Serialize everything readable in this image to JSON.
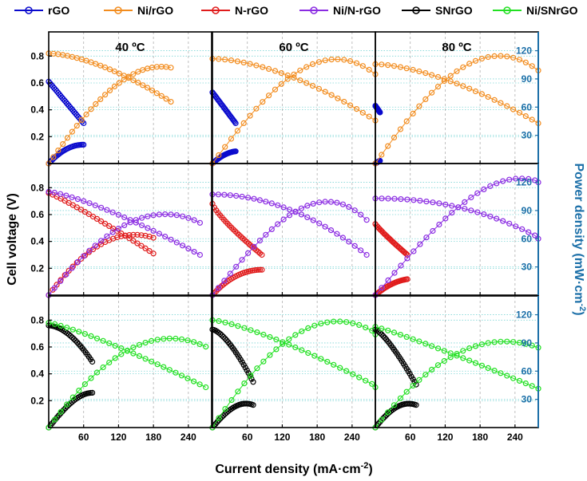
{
  "legend": {
    "entries": [
      {
        "label": "rGO",
        "color": "#0a0acd"
      },
      {
        "label": "Ni/rGO",
        "color": "#f28c1e"
      },
      {
        "label": "N-rGO",
        "color": "#e01b1b"
      },
      {
        "label": "Ni/N-rGO",
        "color": "#8a2be2"
      },
      {
        "label": "SNrGO",
        "color": "#000000"
      },
      {
        "label": "Ni/SNrGO",
        "color": "#22e022"
      }
    ]
  },
  "axes": {
    "xlabel": "Current density (mA·cm",
    "xlabel_sup": "-2",
    "xlabel_end": ")",
    "ylabel": "Cell voltage (V)",
    "y2label": "Power density (mW·cm",
    "y2label_sup": "-2",
    "y2label_end": ")",
    "xticks": [
      "60",
      "120",
      "180",
      "240"
    ],
    "yticks": [
      "0.2",
      "0.4",
      "0.6",
      "0.8"
    ],
    "y2ticks": [
      "30",
      "60",
      "90",
      "120"
    ],
    "xlim": [
      0,
      280
    ],
    "ylim": [
      0,
      0.98
    ],
    "y2lim": [
      0,
      140
    ]
  },
  "temperatures": [
    "40 ºC",
    "60 ºC",
    "80 ºC"
  ],
  "colors": {
    "rGO": "#0a0acd",
    "NirGO": "#f28c1e",
    "NrGO": "#e01b1b",
    "NiNrGO": "#8a2be2",
    "SNrGO": "#000000",
    "NiSNrGO": "#22e022",
    "right_axis": "#1b6fa8",
    "hgrid": "#7fd6d6",
    "vgrid": "#b0b0b0"
  },
  "chart_data": {
    "type": "line",
    "note_rows": "row 0: rGO & Ni/rGO; row 1: N-rGO & Ni/N-rGO; row 2: SNrGO & Ni/SNrGO; columns: 40, 60, 80 ºC",
    "panels": [
      {
        "row": 0,
        "col": 0,
        "series": [
          {
            "name": "rGO",
            "kind": "voltage",
            "x_max": 60,
            "v0": 0.61,
            "v_end": 0.3,
            "shape": 1.0
          },
          {
            "name": "rGO",
            "kind": "power",
            "x_max": 60,
            "p_end": 20
          },
          {
            "name": "Ni/rGO",
            "kind": "voltage",
            "x_max": 210,
            "v0": 0.82,
            "v_end": 0.46,
            "shape": 1.6
          },
          {
            "name": "Ni/rGO",
            "kind": "power",
            "x_max": 210,
            "p_end": 102
          }
        ]
      },
      {
        "row": 0,
        "col": 1,
        "series": [
          {
            "name": "rGO",
            "kind": "voltage",
            "x_max": 40,
            "v0": 0.53,
            "v_end": 0.3,
            "shape": 1.0
          },
          {
            "name": "rGO",
            "kind": "power",
            "x_max": 40,
            "p_end": 13
          },
          {
            "name": "Ni/rGO",
            "kind": "voltage",
            "x_max": 280,
            "v0": 0.78,
            "v_end": 0.32,
            "shape": 1.7
          },
          {
            "name": "Ni/rGO",
            "kind": "power",
            "x_max": 280,
            "p_end": 95
          }
        ]
      },
      {
        "row": 0,
        "col": 2,
        "series": [
          {
            "name": "rGO",
            "kind": "voltage",
            "x_max": 8,
            "v0": 0.43,
            "v_end": 0.38,
            "shape": 1.0
          },
          {
            "name": "rGO",
            "kind": "power",
            "x_max": 8,
            "p_end": 3
          },
          {
            "name": "Ni/rGO",
            "kind": "voltage",
            "x_max": 280,
            "v0": 0.74,
            "v_end": 0.3,
            "shape": 1.6
          },
          {
            "name": "Ni/rGO",
            "kind": "power",
            "x_max": 280,
            "p_end": 99
          }
        ]
      },
      {
        "row": 1,
        "col": 0,
        "series": [
          {
            "name": "N-rGO",
            "kind": "voltage",
            "x_max": 180,
            "v0": 0.76,
            "v_end": 0.31,
            "shape": 1.1
          },
          {
            "name": "N-rGO",
            "kind": "power",
            "x_max": 180,
            "p_end": 61
          },
          {
            "name": "Ni/N-rGO",
            "kind": "voltage",
            "x_max": 260,
            "v0": 0.77,
            "v_end": 0.3,
            "shape": 1.3
          },
          {
            "name": "Ni/N-rGO",
            "kind": "power",
            "x_max": 260,
            "p_end": 77
          }
        ]
      },
      {
        "row": 1,
        "col": 1,
        "series": [
          {
            "name": "N-rGO",
            "kind": "voltage",
            "x_max": 85,
            "v0": 0.68,
            "v_end": 0.3,
            "shape": 0.8
          },
          {
            "name": "N-rGO",
            "kind": "power",
            "x_max": 85,
            "p_end": 27
          },
          {
            "name": "Ni/N-rGO",
            "kind": "voltage",
            "x_max": 265,
            "v0": 0.75,
            "v_end": 0.3,
            "shape": 2.0
          },
          {
            "name": "Ni/N-rGO",
            "kind": "power",
            "x_max": 265,
            "p_end": 80
          }
        ]
      },
      {
        "row": 1,
        "col": 2,
        "series": [
          {
            "name": "N-rGO",
            "kind": "voltage",
            "x_max": 55,
            "v0": 0.53,
            "v_end": 0.3,
            "shape": 0.9
          },
          {
            "name": "N-rGO",
            "kind": "power",
            "x_max": 55,
            "p_end": 17
          },
          {
            "name": "Ni/N-rGO",
            "kind": "voltage",
            "x_max": 285,
            "v0": 0.72,
            "v_end": 0.42,
            "shape": 2.2
          },
          {
            "name": "Ni/N-rGO",
            "kind": "power",
            "x_max": 285,
            "p_end": 120
          }
        ]
      },
      {
        "row": 2,
        "col": 0,
        "series": [
          {
            "name": "SNrGO",
            "kind": "voltage",
            "x_max": 75,
            "v0": 0.76,
            "v_end": 0.49,
            "shape": 1.8
          },
          {
            "name": "SNrGO",
            "kind": "power",
            "x_max": 75,
            "p_end": 37
          },
          {
            "name": "Ni/SNrGO",
            "kind": "voltage",
            "x_max": 270,
            "v0": 0.78,
            "v_end": 0.3,
            "shape": 1.2
          },
          {
            "name": "Ni/SNrGO",
            "kind": "power",
            "x_max": 270,
            "p_end": 86
          }
        ]
      },
      {
        "row": 2,
        "col": 1,
        "series": [
          {
            "name": "SNrGO",
            "kind": "voltage",
            "x_max": 70,
            "v0": 0.73,
            "v_end": 0.34,
            "shape": 1.5
          },
          {
            "name": "SNrGO",
            "kind": "power",
            "x_max": 70,
            "p_end": 24
          },
          {
            "name": "Ni/SNrGO",
            "kind": "voltage",
            "x_max": 285,
            "v0": 0.8,
            "v_end": 0.3,
            "shape": 1.3
          },
          {
            "name": "Ni/SNrGO",
            "kind": "power",
            "x_max": 285,
            "p_end": 99
          }
        ]
      },
      {
        "row": 2,
        "col": 2,
        "series": [
          {
            "name": "SNrGO",
            "kind": "voltage",
            "x_max": 70,
            "v0": 0.73,
            "v_end": 0.32,
            "shape": 1.3
          },
          {
            "name": "SNrGO",
            "kind": "power",
            "x_max": 70,
            "p_end": 24
          },
          {
            "name": "Ni/SNrGO",
            "kind": "voltage",
            "x_max": 280,
            "v0": 0.75,
            "v_end": 0.29,
            "shape": 1.1
          },
          {
            "name": "Ni/SNrGO",
            "kind": "power",
            "x_max": 280,
            "p_end": 85
          }
        ]
      }
    ]
  }
}
